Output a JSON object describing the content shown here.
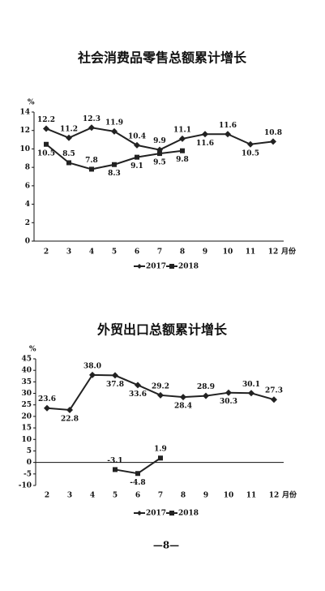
{
  "chart_data": [
    {
      "type": "line",
      "title": "社会消费品零售总额累计增长",
      "y_label": "%",
      "x_label": "月份",
      "categories": [
        "2",
        "3",
        "4",
        "5",
        "6",
        "7",
        "8",
        "9",
        "10",
        "11",
        "12"
      ],
      "series": [
        {
          "name": "2017",
          "color": "#222222",
          "values": [
            12.2,
            11.2,
            12.3,
            11.9,
            10.4,
            9.9,
            11.1,
            11.6,
            11.6,
            10.5,
            10.8
          ]
        },
        {
          "name": "2018",
          "color": "#222222",
          "values": [
            10.5,
            8.5,
            7.8,
            8.3,
            9.1,
            9.5,
            9.8,
            null,
            null,
            null,
            null
          ]
        }
      ],
      "ylim": [
        0,
        14
      ],
      "yticks": [
        0,
        2,
        4,
        6,
        8,
        10,
        12,
        14
      ],
      "legend": "bottom"
    },
    {
      "type": "line",
      "title": "外贸出口总额累计增长",
      "y_label": "%",
      "x_label": "月份",
      "categories": [
        "2",
        "3",
        "4",
        "5",
        "6",
        "7",
        "8",
        "9",
        "10",
        "11",
        "12"
      ],
      "series": [
        {
          "name": "2017",
          "color": "#222222",
          "values": [
            23.6,
            22.8,
            38,
            37.8,
            33.6,
            29.2,
            28.4,
            28.9,
            30.3,
            30.1,
            27.3
          ],
          "value_labels": [
            "23.6",
            "22.8",
            "38.0",
            "37.8",
            "33.6",
            "29.2",
            "28.4",
            "28.9",
            "30.3",
            "30.1",
            "27.3"
          ]
        },
        {
          "name": "2018",
          "color": "#222222",
          "values": [
            null,
            null,
            null,
            -3.1,
            -4.8,
            1.9,
            null,
            null,
            null,
            null,
            null
          ]
        }
      ],
      "ylim": [
        -10,
        45
      ],
      "yticks": [
        -10,
        -5,
        0,
        5,
        10,
        15,
        20,
        25,
        30,
        35,
        40,
        45
      ],
      "legend": "bottom"
    }
  ],
  "page_number": "—8—"
}
